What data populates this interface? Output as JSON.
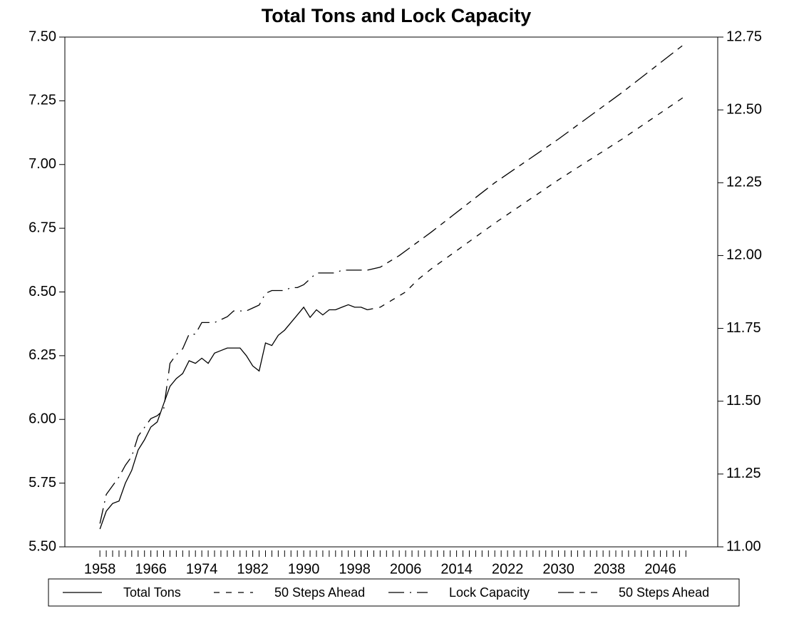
{
  "chart_data": {
    "type": "line",
    "title": "Total Tons and Lock Capacity",
    "xlim": [
      1952.5,
      2055
    ],
    "xticks": [
      1958,
      1966,
      1974,
      1982,
      1990,
      1998,
      2006,
      2014,
      2022,
      2030,
      2038,
      2046
    ],
    "xminor_ticks": [
      1958,
      1959,
      1960,
      1961,
      1962,
      1963,
      1964,
      1965,
      1966,
      1967,
      1968,
      1969,
      1970,
      1971,
      1972,
      1973,
      1974,
      1975,
      1976,
      1977,
      1978,
      1979,
      1980,
      1981,
      1982,
      1983,
      1984,
      1985,
      1986,
      1987,
      1988,
      1989,
      1990,
      1991,
      1992,
      1993,
      1994,
      1995,
      1996,
      1997,
      1998,
      1999,
      2000,
      2001,
      2002,
      2003,
      2004,
      2005,
      2006,
      2007,
      2008,
      2009,
      2010,
      2011,
      2012,
      2013,
      2014,
      2015,
      2016,
      2017,
      2018,
      2019,
      2020,
      2021,
      2022,
      2023,
      2024,
      2025,
      2026,
      2027,
      2028,
      2029,
      2030,
      2031,
      2032,
      2033,
      2034,
      2035,
      2036,
      2037,
      2038,
      2039,
      2040,
      2041,
      2042,
      2043,
      2044,
      2045,
      2046,
      2047,
      2048,
      2049,
      2050
    ],
    "ylim": [
      5.5,
      7.5
    ],
    "yticks": [
      {
        "value": 5.5,
        "label": "5.50"
      },
      {
        "value": 5.75,
        "label": "5.75"
      },
      {
        "value": 6.0,
        "label": "6.00"
      },
      {
        "value": 6.25,
        "label": "6.25"
      },
      {
        "value": 6.5,
        "label": "6.50"
      },
      {
        "value": 6.75,
        "label": "6.75"
      },
      {
        "value": 7.0,
        "label": "7.00"
      },
      {
        "value": 7.25,
        "label": "7.25"
      },
      {
        "value": 7.5,
        "label": "7.50"
      }
    ],
    "y2lim": [
      11.0,
      12.75
    ],
    "y2ticks": [
      {
        "value": 11.0,
        "label": "11.00"
      },
      {
        "value": 11.25,
        "label": "11.25"
      },
      {
        "value": 11.5,
        "label": "11.50"
      },
      {
        "value": 11.75,
        "label": "11.75"
      },
      {
        "value": 12.0,
        "label": "12.00"
      },
      {
        "value": 12.25,
        "label": "12.25"
      },
      {
        "value": 12.5,
        "label": "12.50"
      },
      {
        "value": 12.75,
        "label": "12.75"
      }
    ],
    "legend": "bottom",
    "series": [
      {
        "name": "Total Tons",
        "color": "#000000",
        "dash": "solid",
        "x": [
          1958,
          1959,
          1960,
          1961,
          1962,
          1963,
          1964,
          1965,
          1966,
          1967,
          1968,
          1969,
          1970,
          1971,
          1972,
          1973,
          1974,
          1975,
          1976,
          1977,
          1978,
          1979,
          1980,
          1981,
          1982,
          1983,
          1984,
          1985,
          1986,
          1987,
          1988,
          1989,
          1990,
          1991,
          1992,
          1993,
          1994,
          1995,
          1996,
          1997,
          1998,
          1999,
          2000
        ],
        "values": [
          5.57,
          5.64,
          5.67,
          5.68,
          5.75,
          5.8,
          5.88,
          5.92,
          5.97,
          5.99,
          6.06,
          6.13,
          6.16,
          6.18,
          6.23,
          6.22,
          6.24,
          6.22,
          6.26,
          6.27,
          6.28,
          6.28,
          6.28,
          6.25,
          6.21,
          6.19,
          6.3,
          6.29,
          6.33,
          6.35,
          6.38,
          6.41,
          6.44,
          6.4,
          6.43,
          6.41,
          6.43,
          6.43,
          6.44,
          6.45,
          6.44,
          6.44,
          6.43
        ]
      },
      {
        "name": "50 Steps Ahead",
        "color": "#000000",
        "dash": "dashed",
        "x": [
          2000,
          2002,
          2004,
          2006,
          2008,
          2010,
          2015,
          2020,
          2030,
          2040,
          2050
        ],
        "values": [
          6.43,
          6.44,
          6.47,
          6.5,
          6.55,
          6.59,
          6.68,
          6.77,
          6.94,
          7.1,
          7.27
        ]
      },
      {
        "name": "Lock Capacity",
        "color": "#000000",
        "dash": "dashdot",
        "axis": "y2",
        "x": [
          1958,
          1959,
          1960,
          1961,
          1962,
          1963,
          1964,
          1965,
          1966,
          1967,
          1968,
          1969,
          1970,
          1971,
          1972,
          1973,
          1974,
          1975,
          1976,
          1977,
          1978,
          1979,
          1980,
          1981,
          1982,
          1983,
          1984,
          1985,
          1986,
          1987,
          1988,
          1989,
          1990,
          1991,
          1992,
          1993,
          1994,
          1995,
          1996,
          1997,
          1998,
          1999,
          2000
        ],
        "values": [
          11.08,
          11.18,
          11.21,
          11.24,
          11.28,
          11.31,
          11.38,
          11.41,
          11.44,
          11.45,
          11.47,
          11.63,
          11.66,
          11.68,
          11.73,
          11.73,
          11.77,
          11.77,
          11.77,
          11.78,
          11.79,
          11.81,
          11.81,
          11.81,
          11.82,
          11.83,
          11.87,
          11.88,
          11.88,
          11.88,
          11.89,
          11.89,
          11.9,
          11.92,
          11.94,
          11.94,
          11.94,
          11.94,
          11.95,
          11.95,
          11.95,
          11.95,
          11.95
        ]
      },
      {
        "name": "50 Steps Ahead",
        "color": "#000000",
        "dash": "longdash",
        "axis": "y2",
        "x": [
          2000,
          2002,
          2005,
          2010,
          2020,
          2030,
          2040,
          2050
        ],
        "values": [
          11.95,
          11.96,
          12.0,
          12.08,
          12.25,
          12.4,
          12.56,
          12.73
        ]
      }
    ]
  }
}
